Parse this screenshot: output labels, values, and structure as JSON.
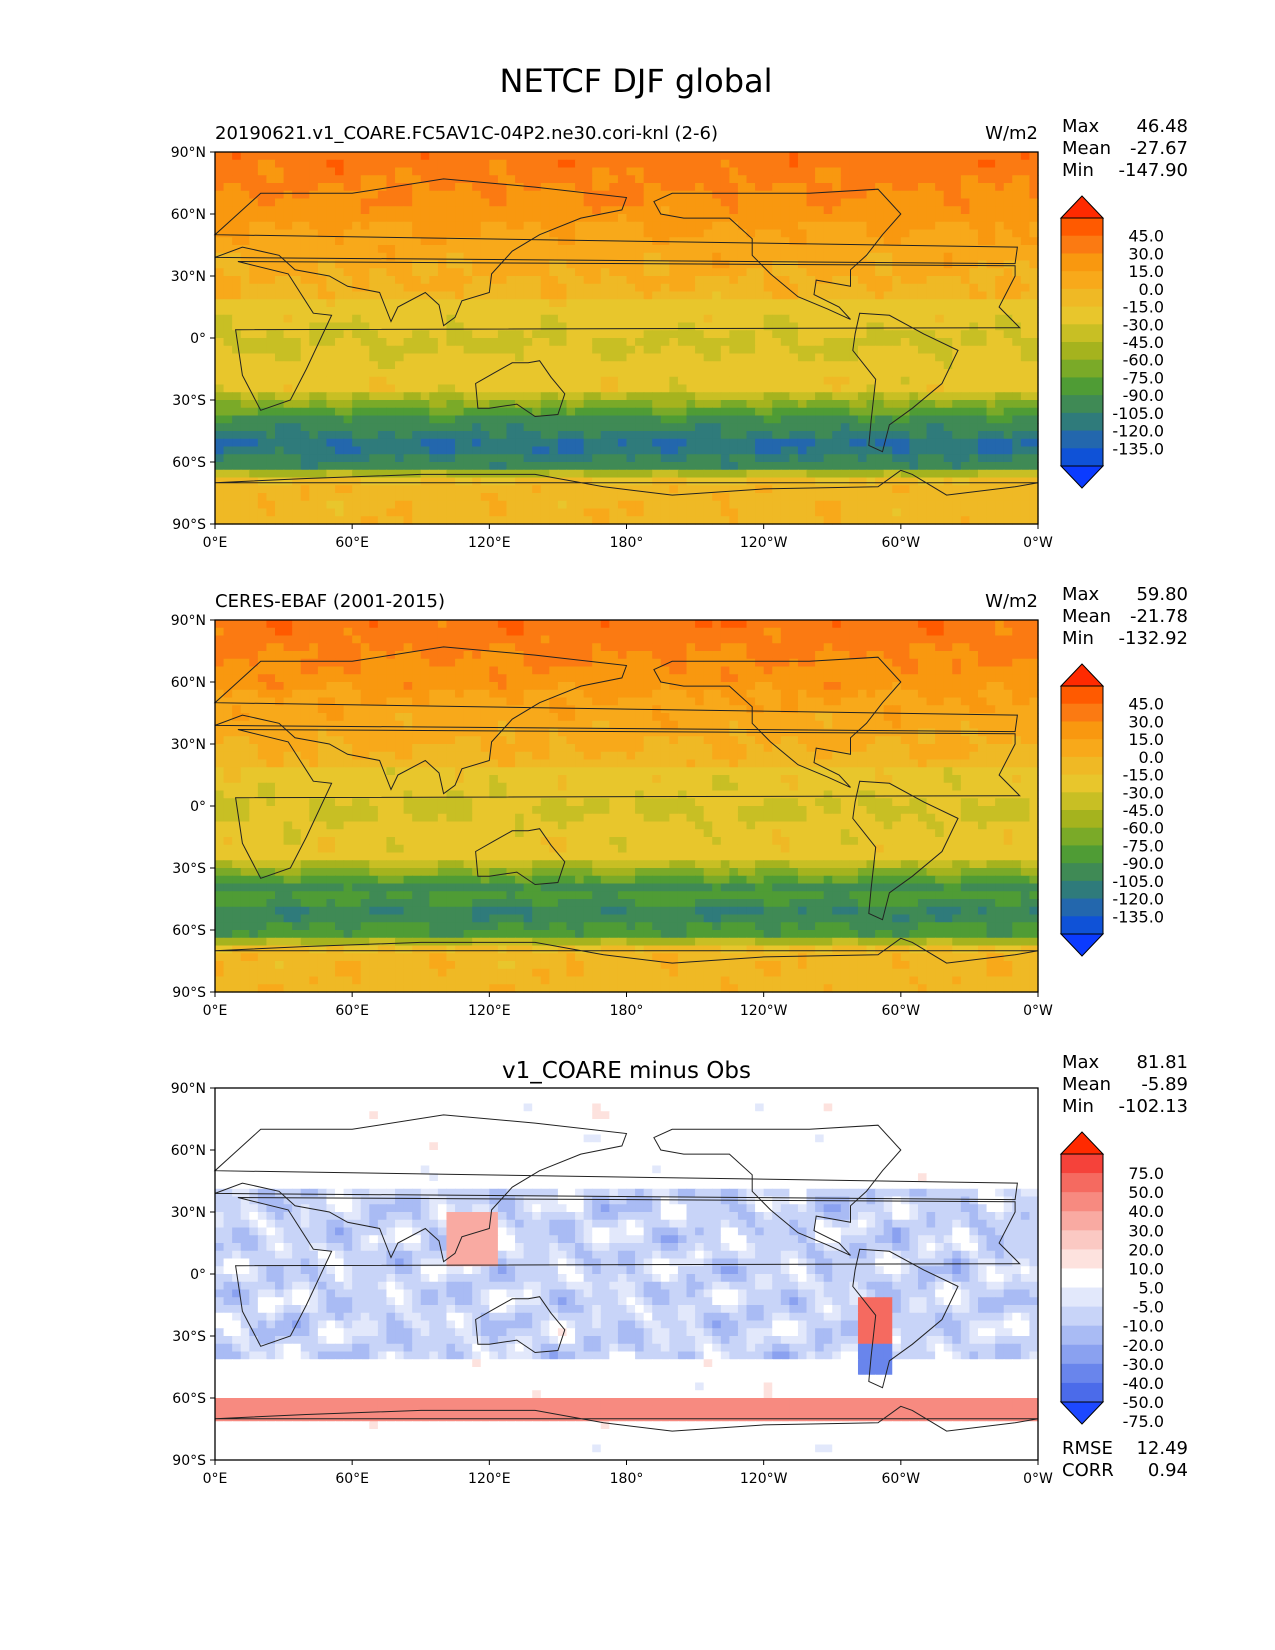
{
  "figure": {
    "title": "NETCF DJF global"
  },
  "chart_data": [
    {
      "type": "heatmap",
      "left_title": "20190621.v1_COARE.FC5AV1C-04P2.ne30.cori-knl (2-6)",
      "center_title": "",
      "units": "W/m2",
      "stats": [
        {
          "label": "Max",
          "value": "46.48"
        },
        {
          "label": "Mean",
          "value": "-27.67"
        },
        {
          "label": "Min",
          "value": "-147.90"
        }
      ],
      "xticks": [
        "0°E",
        "60°E",
        "120°E",
        "180°",
        "120°W",
        "60°W",
        "0°W"
      ],
      "yticks": [
        "90°N",
        "60°N",
        "30°N",
        "0°",
        "30°S",
        "60°S",
        "90°S"
      ],
      "xlim": [
        0,
        360
      ],
      "ylim": [
        -90,
        90
      ],
      "colorbar": {
        "extend": "both",
        "labels": [
          "45.0",
          "30.0",
          "15.0",
          "0.0",
          "-15.0",
          "-30.0",
          "-45.0",
          "-60.0",
          "-75.0",
          "-90.0",
          "-105.0",
          "-120.0",
          "-135.0"
        ],
        "colors": [
          "#ff2a00",
          "#ff5a00",
          "#fb7a12",
          "#f9980f",
          "#f8a91a",
          "#efb925",
          "#e8c62c",
          "#c8bf24",
          "#a5b31e",
          "#7aaa28",
          "#4f9c35",
          "#3f8a55",
          "#2f7b7b",
          "#2367ad",
          "#0f52d7",
          "#0b3bff"
        ]
      },
      "bottom_stats": []
    },
    {
      "type": "heatmap",
      "left_title": "CERES-EBAF (2001-2015)",
      "center_title": "",
      "units": "W/m2",
      "stats": [
        {
          "label": "Max",
          "value": "59.80"
        },
        {
          "label": "Mean",
          "value": "-21.78"
        },
        {
          "label": "Min",
          "value": "-132.92"
        }
      ],
      "xticks": [
        "0°E",
        "60°E",
        "120°E",
        "180°",
        "120°W",
        "60°W",
        "0°W"
      ],
      "yticks": [
        "90°N",
        "60°N",
        "30°N",
        "0°",
        "30°S",
        "60°S",
        "90°S"
      ],
      "xlim": [
        0,
        360
      ],
      "ylim": [
        -90,
        90
      ],
      "colorbar": {
        "extend": "both",
        "labels": [
          "45.0",
          "30.0",
          "15.0",
          "0.0",
          "-15.0",
          "-30.0",
          "-45.0",
          "-60.0",
          "-75.0",
          "-90.0",
          "-105.0",
          "-120.0",
          "-135.0"
        ],
        "colors": [
          "#ff2a00",
          "#ff5a00",
          "#fb7a12",
          "#f9980f",
          "#f8a91a",
          "#efb925",
          "#e8c62c",
          "#c8bf24",
          "#a5b31e",
          "#7aaa28",
          "#4f9c35",
          "#3f8a55",
          "#2f7b7b",
          "#2367ad",
          "#0f52d7",
          "#0b3bff"
        ]
      },
      "bottom_stats": []
    },
    {
      "type": "heatmap",
      "left_title": "",
      "center_title": "v1_COARE minus Obs",
      "units": "",
      "stats": [
        {
          "label": "Max",
          "value": "81.81"
        },
        {
          "label": "Mean",
          "value": "-5.89"
        },
        {
          "label": "Min",
          "value": "-102.13"
        }
      ],
      "xticks": [
        "0°E",
        "60°E",
        "120°E",
        "180°",
        "120°W",
        "60°W",
        "0°W"
      ],
      "yticks": [
        "90°N",
        "60°N",
        "30°N",
        "0°",
        "30°S",
        "60°S",
        "90°S"
      ],
      "xlim": [
        0,
        360
      ],
      "ylim": [
        -90,
        90
      ],
      "colorbar": {
        "extend": "both",
        "labels": [
          "75.0",
          "50.0",
          "40.0",
          "30.0",
          "20.0",
          "10.0",
          "5.0",
          "-5.0",
          "-10.0",
          "-20.0",
          "-30.0",
          "-40.0",
          "-50.0",
          "-75.0"
        ],
        "colors": [
          "#ff2a00",
          "#f5423a",
          "#f56a60",
          "#f78a80",
          "#f9aaa2",
          "#fbc9c3",
          "#fde2de",
          "#ffffff",
          "#e2e8fb",
          "#c8d4f8",
          "#a9bbf4",
          "#8aa1f0",
          "#6985ec",
          "#4b6bea",
          "#1d48ff"
        ]
      },
      "bottom_stats": [
        {
          "label": "RMSE",
          "value": "12.49"
        },
        {
          "label": "CORR",
          "value": "0.94"
        }
      ]
    }
  ]
}
